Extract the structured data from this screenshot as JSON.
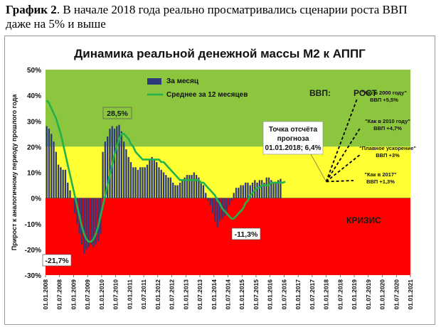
{
  "caption": {
    "label": "График 2",
    "text": ". В начале 2018 года реально просматривались сценарии роста ВВП даже на 5% и выше"
  },
  "chart_data": {
    "type": "bar",
    "title": "Динамика реальной денежной массы М2 к АППГ",
    "ylabel": "Прирост к аналогичному периоду прошлого года",
    "ylim": [
      -30,
      50
    ],
    "yticks": [
      "-30%",
      "-20%",
      "-10%",
      "0%",
      "10%",
      "20%",
      "30%",
      "40%",
      "50%"
    ],
    "xticks": [
      "01.01.2008",
      "01.07.2008",
      "01.01.2009",
      "01.07.2009",
      "01.01.2010",
      "01.07.2010",
      "01.01.2011",
      "01.07.2011",
      "01.01.2012",
      "01.07.2012",
      "01.01.2013",
      "01.07.2013",
      "01.01.2014",
      "01.07.2014",
      "01.01.2015",
      "01.07.2015",
      "01.01.2016",
      "01.07.2016",
      "01.01.2017",
      "01.07.2017",
      "01.01.2018",
      "01.07.2018",
      "01.01.2019",
      "01.07.2019",
      "01.01.2020",
      "01.07.2020",
      "01.01.2021"
    ],
    "zones": [
      {
        "from": 20,
        "to": 50,
        "color": "#8cc63f"
      },
      {
        "from": 0,
        "to": 20,
        "color": "#ffff33"
      },
      {
        "from": -30,
        "to": 0,
        "color": "#ff0000"
      }
    ],
    "zone_labels": {
      "gdp": "ВВП:",
      "growth": "РОСТ",
      "crisis": "КРИЗИС"
    },
    "legend": {
      "position": "top-left",
      "items": [
        {
          "name": "За месяц",
          "color": "#2e3a7a"
        },
        {
          "name": "Среднее за 12 месяцев",
          "color": "#22b14c"
        }
      ]
    },
    "series": [
      {
        "name": "За месяц",
        "kind": "bar",
        "color": "#2e3a7a",
        "values": [
          28,
          27,
          25,
          22,
          18,
          13,
          12,
          11,
          11,
          6,
          3,
          0,
          -6,
          -10,
          -14,
          -18,
          -21.7,
          -20,
          -19,
          -18,
          -19,
          -18,
          -17,
          -14,
          18,
          22,
          24,
          27,
          28,
          27,
          28,
          28.5,
          26,
          22,
          19,
          16,
          14,
          12,
          12,
          11,
          12,
          12,
          12,
          13,
          15,
          16,
          15,
          14,
          12,
          11,
          10,
          9,
          8,
          8,
          6,
          5,
          5,
          6,
          7,
          8,
          9,
          9,
          9,
          10,
          9,
          8,
          6,
          5,
          2,
          -1,
          -3,
          -6,
          -9,
          -11.3,
          -9,
          -8,
          -7,
          -5,
          -3,
          -1,
          2,
          4,
          4,
          5,
          5,
          6,
          6,
          5,
          6,
          7,
          6,
          7,
          7,
          6,
          8,
          8,
          7,
          6,
          6,
          7,
          7.5
        ]
      },
      {
        "name": "Среднее за 12 месяцев",
        "kind": "line",
        "color": "#22b14c",
        "values": [
          38,
          37,
          35,
          33,
          31,
          28,
          25,
          21,
          17,
          13,
          9,
          5,
          1,
          -3,
          -7,
          -11,
          -14,
          -16,
          -17,
          -17,
          -16,
          -14,
          -11,
          -7,
          -3,
          1,
          5,
          9,
          13,
          17,
          20,
          23,
          25,
          25,
          24,
          23,
          21,
          20,
          18,
          17,
          16,
          15,
          15,
          15,
          15,
          15,
          15,
          15,
          15,
          14,
          14,
          13,
          12,
          11,
          10,
          9,
          8,
          7,
          7,
          7,
          7,
          7,
          7,
          7,
          7,
          7,
          6,
          6,
          5,
          4,
          3,
          2,
          1,
          -1,
          -2,
          -4,
          -5,
          -6,
          -7,
          -8,
          -8,
          -7,
          -6,
          -5,
          -4,
          -2,
          -1,
          1,
          2,
          3,
          4,
          4,
          5,
          5,
          5,
          5,
          6,
          6,
          6,
          6,
          6,
          6,
          6.4
        ]
      }
    ],
    "annotations": [
      {
        "text": "28,5%",
        "index": 31,
        "value": 28.5
      },
      {
        "text": "-21,7%",
        "index": 16,
        "value": -21.7
      },
      {
        "text": "-11,3%",
        "index": 73,
        "value": -11.3
      }
    ],
    "start_point": {
      "text": "Точка отсчёта прогноза 01.01.2018; 6,4%",
      "lines": [
        "Точка отсчёта",
        "прогноза",
        "01.01.2018; 6,4%"
      ]
    },
    "scenarios": [
      {
        "label": "\"Как в 2000 году\"",
        "value_label": "ВВП +5,5%",
        "end": 35
      },
      {
        "label": "\"Как в 2010 году\"",
        "value_label": "ВВП +4,7%",
        "end": 27
      },
      {
        "label": "\"Плавное ускорение\"",
        "value_label": "ВВП +3%",
        "end": 16
      },
      {
        "label": "\"Как в 2017\"",
        "value_label": "ВВП +1,3%",
        "end": 7
      }
    ]
  }
}
